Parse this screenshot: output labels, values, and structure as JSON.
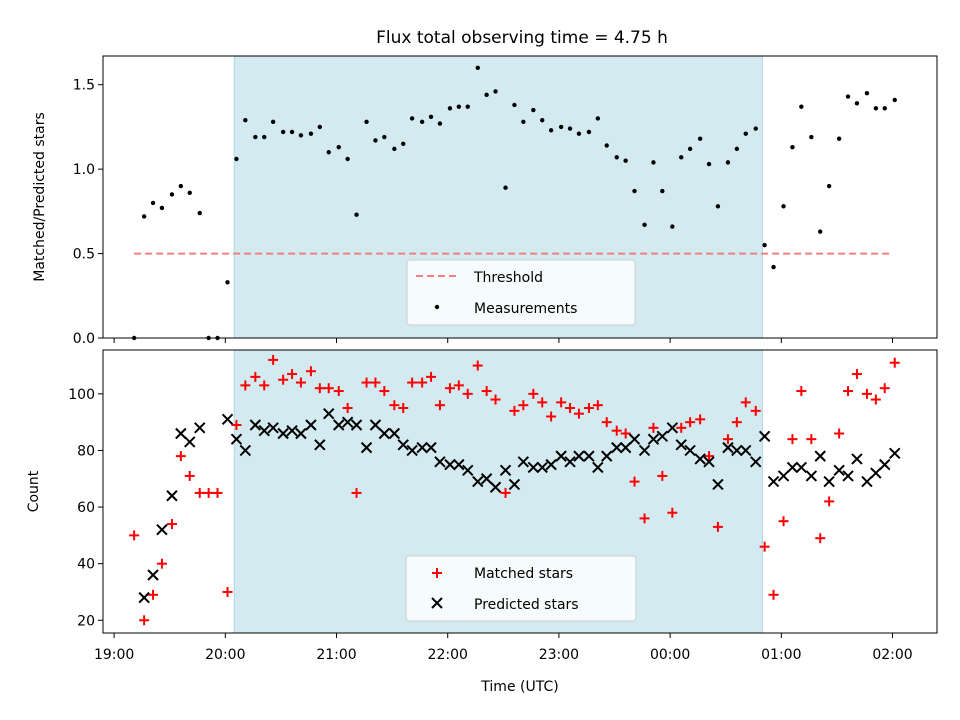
{
  "chart_data": [
    {
      "type": "scatter",
      "title": "Flux total observing time = 4.75 h",
      "xlabel": "",
      "ylabel": "Matched/Predicted stars",
      "ylim": [
        0,
        1.67
      ],
      "yticks": [
        0.0,
        0.5,
        1.0,
        1.5
      ],
      "ytick_labels": [
        "0.0",
        "0.5",
        "1.0",
        "1.5"
      ],
      "xlim_hours": [
        18.9,
        26.4
      ],
      "xticks": [
        19,
        20,
        21,
        22,
        23,
        24,
        25,
        26
      ],
      "shaded_interval": [
        20.08,
        24.83
      ],
      "shade_color": "#d3eaf1",
      "legend_position": "lower center",
      "threshold": {
        "name": "Threshold",
        "value": 0.5,
        "x_range": [
          19.18,
          26.0
        ],
        "color": "#f08080"
      },
      "series": [
        {
          "name": "Measurements",
          "color": "#000000",
          "marker": "dot",
          "x": [
            19.18,
            19.27,
            19.35,
            19.43,
            19.52,
            19.6,
            19.68,
            19.77,
            19.85,
            19.93,
            20.02,
            20.1,
            20.18,
            20.27,
            20.35,
            20.43,
            20.52,
            20.6,
            20.68,
            20.77,
            20.85,
            20.93,
            21.02,
            21.1,
            21.18,
            21.27,
            21.35,
            21.43,
            21.52,
            21.6,
            21.68,
            21.77,
            21.85,
            21.93,
            22.02,
            22.1,
            22.18,
            22.27,
            22.35,
            22.43,
            22.52,
            22.6,
            22.68,
            22.77,
            22.85,
            22.93,
            23.02,
            23.1,
            23.18,
            23.27,
            23.35,
            23.43,
            23.52,
            23.6,
            23.68,
            23.77,
            23.85,
            23.93,
            24.02,
            24.1,
            24.18,
            24.27,
            24.35,
            24.43,
            24.52,
            24.6,
            24.68,
            24.77,
            24.85,
            24.93,
            25.02,
            25.1,
            25.18,
            25.27,
            25.35,
            25.43,
            25.52,
            25.6,
            25.68,
            25.77,
            25.85,
            25.93,
            26.02
          ],
          "y": [
            0.0,
            0.72,
            0.8,
            0.77,
            0.85,
            0.9,
            0.86,
            0.74,
            0.0,
            0.0,
            0.33,
            1.06,
            1.29,
            1.19,
            1.19,
            1.28,
            1.22,
            1.22,
            1.2,
            1.21,
            1.25,
            1.1,
            1.13,
            1.06,
            0.73,
            1.28,
            1.17,
            1.19,
            1.12,
            1.15,
            1.3,
            1.28,
            1.31,
            1.27,
            1.36,
            1.37,
            1.37,
            1.6,
            1.44,
            1.46,
            0.89,
            1.38,
            1.28,
            1.35,
            1.29,
            1.23,
            1.25,
            1.24,
            1.21,
            1.22,
            1.3,
            1.14,
            1.07,
            1.05,
            0.87,
            0.67,
            1.04,
            0.87,
            0.66,
            1.07,
            1.12,
            1.18,
            1.03,
            0.78,
            1.04,
            1.12,
            1.21,
            1.24,
            0.55,
            0.42,
            0.78,
            1.13,
            1.37,
            1.19,
            0.63,
            0.9,
            1.18,
            1.43,
            1.39,
            1.45,
            1.36,
            1.36,
            1.41
          ]
        }
      ]
    },
    {
      "type": "scatter",
      "title": "",
      "xlabel": "Time (UTC)",
      "ylabel": "Count",
      "ylim": [
        15.5,
        115.5
      ],
      "yticks": [
        20,
        40,
        60,
        80,
        100
      ],
      "ytick_labels": [
        "20",
        "40",
        "60",
        "80",
        "100"
      ],
      "xlim_hours": [
        18.9,
        26.4
      ],
      "xticks": [
        19,
        20,
        21,
        22,
        23,
        24,
        25,
        26
      ],
      "xtick_labels": [
        "19:00",
        "20:00",
        "21:00",
        "22:00",
        "23:00",
        "00:00",
        "01:00",
        "02:00"
      ],
      "shaded_interval": [
        20.08,
        24.83
      ],
      "shade_color": "#d3eaf1",
      "legend_position": "lower center",
      "series": [
        {
          "name": "Matched stars",
          "color": "#ff0000",
          "marker": "plus",
          "x": [
            19.18,
            19.27,
            19.35,
            19.43,
            19.52,
            19.6,
            19.68,
            19.77,
            19.85,
            19.93,
            20.02,
            20.1,
            20.18,
            20.27,
            20.35,
            20.43,
            20.52,
            20.6,
            20.68,
            20.77,
            20.85,
            20.93,
            21.02,
            21.1,
            21.18,
            21.27,
            21.35,
            21.43,
            21.52,
            21.6,
            21.68,
            21.77,
            21.85,
            21.93,
            22.02,
            22.1,
            22.18,
            22.27,
            22.35,
            22.43,
            22.52,
            22.6,
            22.68,
            22.77,
            22.85,
            22.93,
            23.02,
            23.1,
            23.18,
            23.27,
            23.35,
            23.43,
            23.52,
            23.6,
            23.68,
            23.77,
            23.85,
            23.93,
            24.02,
            24.1,
            24.18,
            24.27,
            24.35,
            24.43,
            24.52,
            24.6,
            24.68,
            24.77,
            24.85,
            24.93,
            25.02,
            25.1,
            25.18,
            25.27,
            25.35,
            25.43,
            25.52,
            25.6,
            25.68,
            25.77,
            25.85,
            25.93,
            26.02
          ],
          "y": [
            50,
            20,
            29,
            40,
            54,
            78,
            71,
            65,
            65,
            65,
            30,
            89,
            103,
            106,
            103,
            112,
            105,
            107,
            104,
            108,
            102,
            102,
            101,
            95,
            65,
            104,
            104,
            101,
            96,
            95,
            104,
            104,
            106,
            96,
            102,
            103,
            100,
            110,
            101,
            98,
            65,
            94,
            96,
            100,
            97,
            92,
            97,
            95,
            93,
            95,
            96,
            90,
            87,
            86,
            69,
            56,
            88,
            71,
            58,
            88,
            90,
            91,
            78,
            53,
            84,
            90,
            97,
            94,
            46,
            29,
            55,
            84,
            101,
            84,
            49,
            62,
            86,
            101,
            107,
            100,
            98,
            102,
            111
          ]
        },
        {
          "name": "Predicted stars",
          "color": "#000000",
          "marker": "x",
          "x": [
            19.27,
            19.35,
            19.43,
            19.52,
            19.6,
            19.68,
            19.77,
            20.02,
            20.1,
            20.18,
            20.27,
            20.35,
            20.43,
            20.52,
            20.6,
            20.68,
            20.77,
            20.85,
            20.93,
            21.02,
            21.1,
            21.18,
            21.27,
            21.35,
            21.43,
            21.52,
            21.6,
            21.68,
            21.77,
            21.85,
            21.93,
            22.02,
            22.1,
            22.18,
            22.27,
            22.35,
            22.43,
            22.52,
            22.6,
            22.68,
            22.77,
            22.85,
            22.93,
            23.02,
            23.1,
            23.18,
            23.27,
            23.35,
            23.43,
            23.52,
            23.6,
            23.68,
            23.77,
            23.85,
            23.93,
            24.02,
            24.1,
            24.18,
            24.27,
            24.35,
            24.43,
            24.52,
            24.6,
            24.68,
            24.77,
            24.85,
            24.93,
            25.02,
            25.1,
            25.18,
            25.27,
            25.35,
            25.43,
            25.52,
            25.6,
            25.68,
            25.77,
            25.85,
            25.93,
            26.02
          ],
          "y": [
            28,
            36,
            52,
            64,
            86,
            83,
            88,
            91,
            84,
            80,
            89,
            87,
            88,
            86,
            87,
            86,
            89,
            82,
            93,
            89,
            90,
            89,
            81,
            89,
            86,
            86,
            82,
            80,
            81,
            81,
            76,
            75,
            75,
            73,
            69,
            70,
            67,
            73,
            68,
            76,
            74,
            74,
            75,
            78,
            76,
            78,
            78,
            74,
            78,
            81,
            81,
            84,
            80,
            84,
            85,
            88,
            82,
            80,
            77,
            76,
            68,
            81,
            80,
            80,
            76,
            85,
            69,
            71,
            74,
            74,
            71,
            78,
            69,
            73,
            71,
            77,
            69,
            72,
            75,
            79
          ]
        }
      ]
    }
  ]
}
